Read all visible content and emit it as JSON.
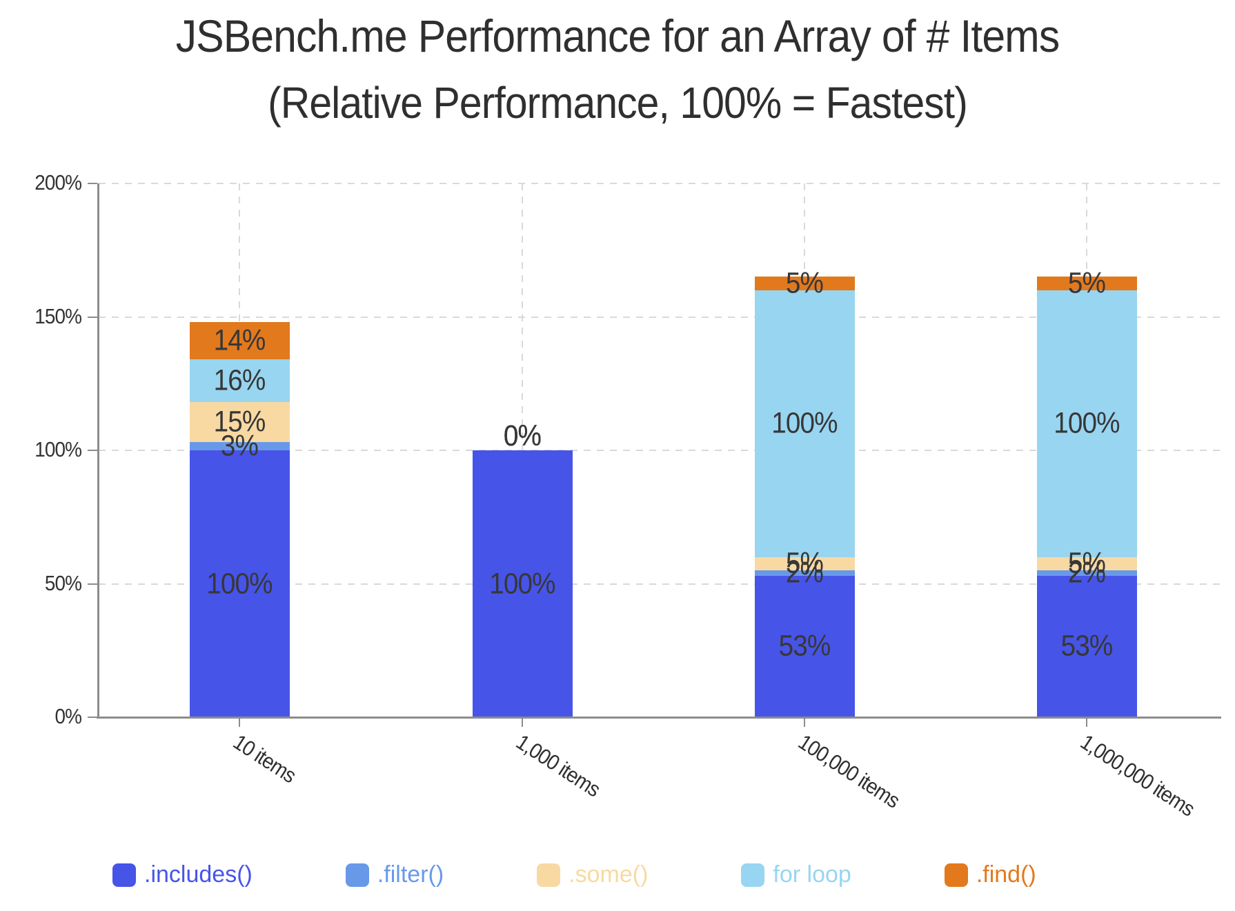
{
  "title": {
    "line1": "JSBench.me Performance for an Array of # Items",
    "line2": "(Relative Performance, 100% = Fastest)"
  },
  "chart_data": {
    "type": "bar",
    "stacked": true,
    "title": "JSBench.me Performance for an Array of # Items (Relative Performance, 100% = Fastest)",
    "categories": [
      "10 items",
      "1,000 items",
      "100,000 items",
      "1,000,000 items"
    ],
    "series": [
      {
        "name": ".includes()",
        "color": "#4754E8",
        "values": [
          100,
          100,
          53,
          53
        ]
      },
      {
        "name": ".filter()",
        "color": "#6899E9",
        "values": [
          3,
          0,
          2,
          2
        ]
      },
      {
        "name": ".some()",
        "color": "#F8D9A2",
        "values": [
          15,
          0,
          5,
          5
        ]
      },
      {
        "name": "for loop",
        "color": "#98D5F1",
        "values": [
          16,
          0,
          100,
          100
        ]
      },
      {
        "name": ".find()",
        "color": "#E2791D",
        "values": [
          14,
          0,
          5,
          5
        ]
      }
    ],
    "y_ticks": [
      {
        "label": "0%",
        "value": 0
      },
      {
        "label": "50%",
        "value": 50
      },
      {
        "label": "100%",
        "value": 100
      },
      {
        "label": "150%",
        "value": 150
      },
      {
        "label": "200%",
        "value": 200
      }
    ],
    "ylim": [
      0,
      200
    ],
    "grid": true,
    "legend_position": "bottom",
    "datalabel_suffix": "%",
    "xlabel": "",
    "ylabel": ""
  },
  "colors": {
    "grid": "#d9d9d9",
    "axis": "#8c8c8c",
    "tick_text": "#333333",
    "datalabel_text": "#373737",
    "title_text": "#2f2f2f",
    "background": "#ffffff"
  }
}
